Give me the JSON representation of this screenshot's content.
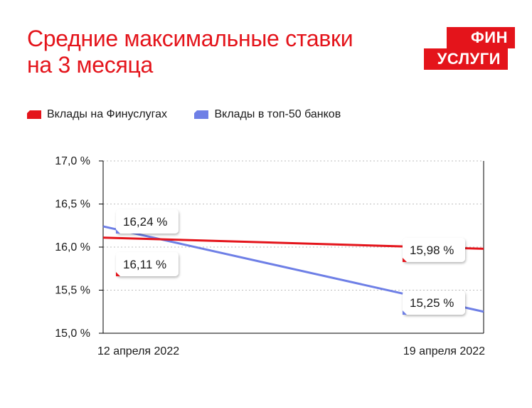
{
  "title": [
    "Средние максимальные ставки",
    "на 3 месяца"
  ],
  "logo": [
    "ФИН",
    "УСЛУГИ"
  ],
  "colors": {
    "accent": "#e4141b",
    "series_blue": "#6e7fe6",
    "axis": "#000000",
    "grid": "#bdbdbd"
  },
  "chart_data": {
    "type": "line",
    "categories": [
      "12 апреля 2022",
      "19 апреля 2022"
    ],
    "ylim": [
      15.0,
      17.0
    ],
    "yticks": [
      {
        "value": 15.0,
        "label": "15,0 %"
      },
      {
        "value": 15.5,
        "label": "15,5 %"
      },
      {
        "value": 16.0,
        "label": "16,0 %"
      },
      {
        "value": 16.5,
        "label": "16,5 %"
      },
      {
        "value": 17.0,
        "label": "17,0 %"
      }
    ],
    "grid": true,
    "legend_position": "top-left",
    "series": [
      {
        "name": "Вклады на Финуслугах",
        "color": "#e4141b",
        "values": [
          16.11,
          15.98
        ],
        "labels": [
          "16,11 %",
          "15,98 %"
        ]
      },
      {
        "name": "Вклады в топ-50 банков",
        "color": "#6e7fe6",
        "values": [
          16.24,
          15.25
        ],
        "labels": [
          "16,24 %",
          "15,25 %"
        ]
      }
    ]
  }
}
